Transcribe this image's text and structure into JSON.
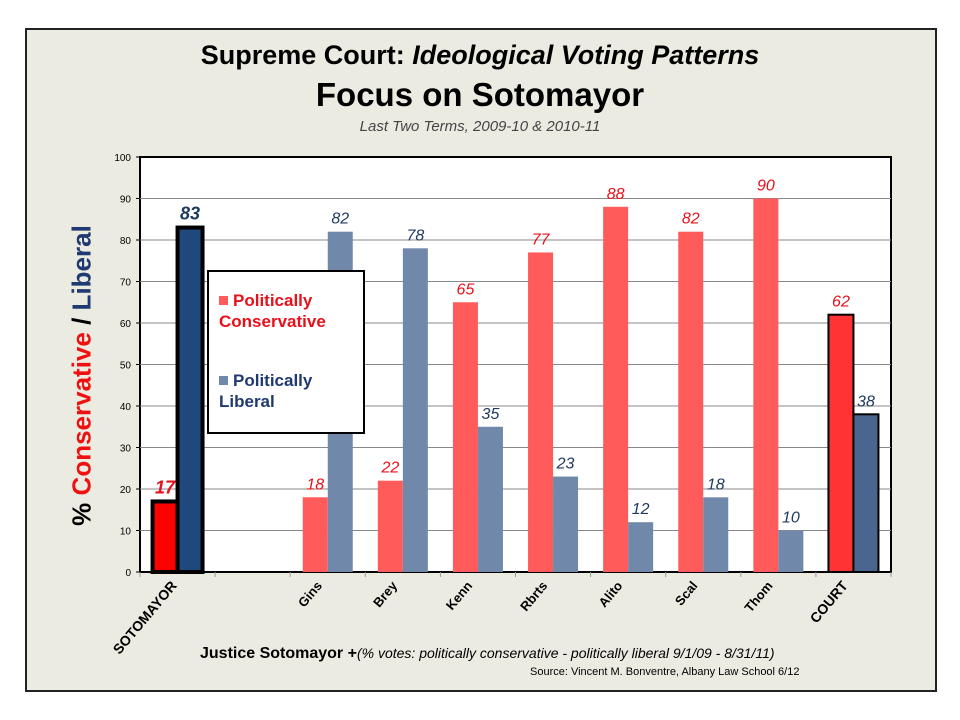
{
  "chart_data": {
    "type": "bar",
    "title": "Supreme Court: Ideological Voting Patterns",
    "title_prefix": "Supreme Court: ",
    "title_italic": "Ideological Voting Patterns",
    "subtitle": "Focus on Sotomayor",
    "subtitle2": "Last Two Terms, 2009-10 & 2010-11",
    "ylabel": {
      "p1": "%",
      "p2": "Conservative",
      "p3": "/",
      "p4": "Liberal"
    },
    "xnote_bold": "Justice Sotomayor +",
    "xnote_italic": "(% votes: politically conservative - politically liberal 9/1/09 - 8/31/11)",
    "source": "Source:  Vincent M. Bonventre,  Albany Law School  6/12",
    "ylim": [
      0,
      100
    ],
    "yticks": [
      "0",
      "10",
      "20",
      "30",
      "40",
      "50",
      "60",
      "70",
      "80",
      "90",
      "100"
    ],
    "grid": true,
    "legend_placement": "upper-left inside",
    "categories": [
      "SOTOMAYOR",
      "",
      "Gins",
      "Brey",
      "Kenn",
      "Rbrts",
      "Alito",
      "Scal",
      "Thom",
      "COURT"
    ],
    "series": [
      {
        "name": "Politically Conservative",
        "name_l1": "Politically",
        "name_l2": "Conservative",
        "color": "#ff5b5b",
        "values": [
          17,
          null,
          18,
          22,
          65,
          77,
          88,
          82,
          90,
          62
        ]
      },
      {
        "name": "Politically Liberal",
        "name_l1": "Politically",
        "name_l2": "Liberal",
        "color": "#7089aa",
        "values": [
          83,
          null,
          82,
          78,
          35,
          23,
          12,
          18,
          10,
          38
        ]
      }
    ],
    "highlight_colors": {
      "sotomayor_cons": "#ff0000",
      "sotomayor_lib": "#1f497d",
      "court_cons": "#ff3333",
      "court_lib": "#4a6690"
    },
    "label_colors": {
      "cons": "#e8101a",
      "lib": "#1f3a60"
    }
  }
}
